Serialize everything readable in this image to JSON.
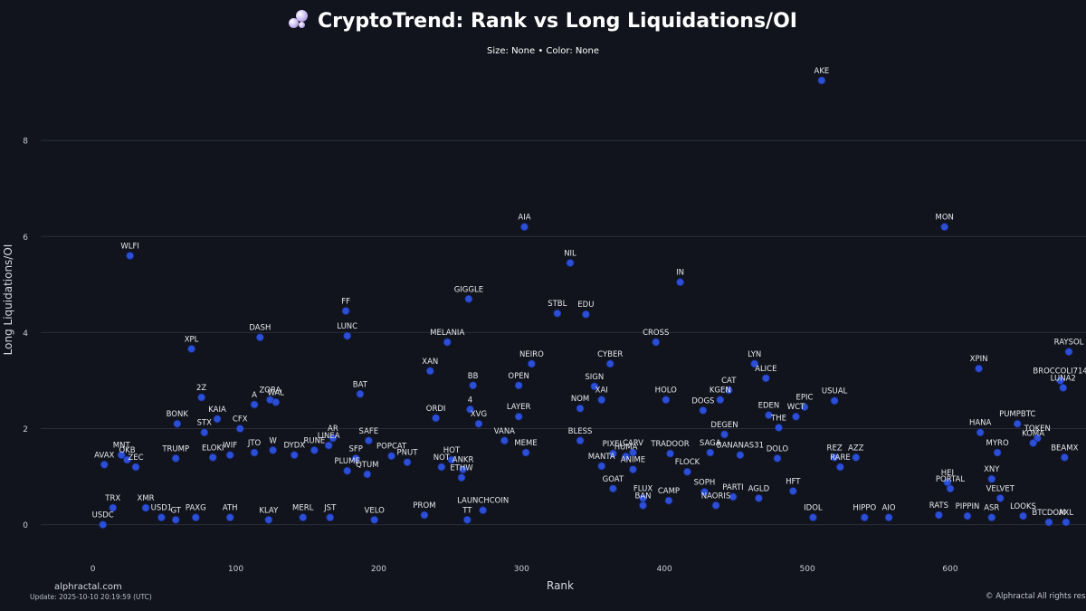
{
  "header": {
    "title": "CryptoTrend: Rank vs Long Liquidations/OI",
    "subtitle": "Size: None • Color: None",
    "logo_icon": "crystal-ball-icon"
  },
  "footer": {
    "brand": "alphractal.com",
    "update": "Update: 2025-10-10 20:19:59 (UTC)",
    "copyright": "© Alphractal All rights reserved"
  },
  "colors": {
    "background": "#11141c",
    "grid": "#2a2e3a",
    "point": "#2b4fd6",
    "label": "#e8e8ee"
  },
  "chart_data": {
    "type": "scatter",
    "title": "CryptoTrend: Rank vs Long Liquidations/OI",
    "subtitle": "Size: None • Color: None",
    "xlabel": "Rank",
    "ylabel": "Long Liquidations/OI",
    "xlim": [
      -27,
      695
    ],
    "ylim": [
      -0.95,
      9.7
    ],
    "xticks": [
      0,
      100,
      200,
      300,
      400,
      500,
      600,
      700
    ],
    "yticks": [
      0,
      2,
      4,
      6,
      8
    ],
    "grid": "horizontal",
    "legend": "none",
    "points": [
      {
        "label": "AKE",
        "x": 510,
        "y": 9.25
      },
      {
        "label": "MON",
        "x": 596,
        "y": 6.2
      },
      {
        "label": "AIA",
        "x": 302,
        "y": 6.2
      },
      {
        "label": "WLFI",
        "x": 26,
        "y": 5.6
      },
      {
        "label": "NIL",
        "x": 334,
        "y": 5.45
      },
      {
        "label": "IN",
        "x": 411,
        "y": 5.05
      },
      {
        "label": "GIGGLE",
        "x": 263,
        "y": 4.7
      },
      {
        "label": "FF",
        "x": 177,
        "y": 4.45
      },
      {
        "label": "STBL",
        "x": 325,
        "y": 4.4
      },
      {
        "label": "EDU",
        "x": 345,
        "y": 4.38
      },
      {
        "label": "DASH",
        "x": 117,
        "y": 3.9
      },
      {
        "label": "LUNC",
        "x": 178,
        "y": 3.93
      },
      {
        "label": "MELANIA",
        "x": 248,
        "y": 3.8
      },
      {
        "label": "CROSS",
        "x": 394,
        "y": 3.8
      },
      {
        "label": "XPL",
        "x": 69,
        "y": 3.66
      },
      {
        "label": "RAYSOL",
        "x": 683,
        "y": 3.6
      },
      {
        "label": "LYN",
        "x": 463,
        "y": 3.35
      },
      {
        "label": "NEIRO",
        "x": 307,
        "y": 3.35
      },
      {
        "label": "CYBER",
        "x": 362,
        "y": 3.35
      },
      {
        "label": "XPIN",
        "x": 620,
        "y": 3.25
      },
      {
        "label": "XAN",
        "x": 236,
        "y": 3.2
      },
      {
        "label": "ALICE",
        "x": 471,
        "y": 3.05
      },
      {
        "label": "BROCCOLI714",
        "x": 677,
        "y": 3.0
      },
      {
        "label": "SIGN",
        "x": 351,
        "y": 2.88
      },
      {
        "label": "OPEN",
        "x": 298,
        "y": 2.9
      },
      {
        "label": "BB",
        "x": 266,
        "y": 2.9
      },
      {
        "label": "CAT",
        "x": 445,
        "y": 2.8
      },
      {
        "label": "LUNA2",
        "x": 679,
        "y": 2.85
      },
      {
        "label": "BAT",
        "x": 187,
        "y": 2.72
      },
      {
        "label": "ZORA",
        "x": 124,
        "y": 2.6
      },
      {
        "label": "2Z",
        "x": 76,
        "y": 2.65
      },
      {
        "label": "HOLO",
        "x": 401,
        "y": 2.6
      },
      {
        "label": "KGEN",
        "x": 439,
        "y": 2.6
      },
      {
        "label": "XAI",
        "x": 356,
        "y": 2.6
      },
      {
        "label": "USUAL",
        "x": 519,
        "y": 2.58
      },
      {
        "label": "WAL",
        "x": 128,
        "y": 2.55
      },
      {
        "label": "A",
        "x": 113,
        "y": 2.5
      },
      {
        "label": "EPIC",
        "x": 498,
        "y": 2.45
      },
      {
        "label": "NOM",
        "x": 341,
        "y": 2.42
      },
      {
        "label": "DOGS",
        "x": 427,
        "y": 2.38
      },
      {
        "label": "4",
        "x": 264,
        "y": 2.4
      },
      {
        "label": "LAYER",
        "x": 298,
        "y": 2.25
      },
      {
        "label": "EDEN",
        "x": 473,
        "y": 2.28
      },
      {
        "label": "WCT",
        "x": 492,
        "y": 2.25
      },
      {
        "label": "KAIA",
        "x": 87,
        "y": 2.2
      },
      {
        "label": "ORDI",
        "x": 240,
        "y": 2.22
      },
      {
        "label": "BONK",
        "x": 59,
        "y": 2.1
      },
      {
        "label": "XVG",
        "x": 270,
        "y": 2.1
      },
      {
        "label": "CFX",
        "x": 103,
        "y": 2.0
      },
      {
        "label": "THE",
        "x": 480,
        "y": 2.02
      },
      {
        "label": "PUMPBTC",
        "x": 647,
        "y": 2.1
      },
      {
        "label": "STX",
        "x": 78,
        "y": 1.92
      },
      {
        "label": "HANA",
        "x": 621,
        "y": 1.92
      },
      {
        "label": "DEGEN",
        "x": 442,
        "y": 1.88
      },
      {
        "label": "VANA",
        "x": 288,
        "y": 1.75
      },
      {
        "label": "BLESS",
        "x": 341,
        "y": 1.75
      },
      {
        "label": "AR",
        "x": 168,
        "y": 1.8
      },
      {
        "label": "TOKEN",
        "x": 661,
        "y": 1.8
      },
      {
        "label": "KOMA",
        "x": 658,
        "y": 1.7
      },
      {
        "label": "MYRO",
        "x": 633,
        "y": 1.5
      },
      {
        "label": "SAFE",
        "x": 193,
        "y": 1.75
      },
      {
        "label": "LINEA",
        "x": 165,
        "y": 1.65
      },
      {
        "label": "RUNE",
        "x": 155,
        "y": 1.55
      },
      {
        "label": "JTO",
        "x": 113,
        "y": 1.5
      },
      {
        "label": "W",
        "x": 126,
        "y": 1.55
      },
      {
        "label": "WIF",
        "x": 96,
        "y": 1.45
      },
      {
        "label": "DYDX",
        "x": 141,
        "y": 1.45
      },
      {
        "label": "ELOKI",
        "x": 84,
        "y": 1.4
      },
      {
        "label": "TRUMP",
        "x": 58,
        "y": 1.38
      },
      {
        "label": "MNT",
        "x": 20,
        "y": 1.45
      },
      {
        "label": "OKB",
        "x": 24,
        "y": 1.35
      },
      {
        "label": "AVAX",
        "x": 8,
        "y": 1.25
      },
      {
        "label": "ZEC",
        "x": 30,
        "y": 1.2
      },
      {
        "label": "MEME",
        "x": 303,
        "y": 1.5
      },
      {
        "label": "PIXEL",
        "x": 364,
        "y": 1.48
      },
      {
        "label": "CARV",
        "x": 378,
        "y": 1.5
      },
      {
        "label": "TRADOOR",
        "x": 404,
        "y": 1.48
      },
      {
        "label": "HUMA",
        "x": 373,
        "y": 1.42
      },
      {
        "label": "SAGA",
        "x": 432,
        "y": 1.5
      },
      {
        "label": "BANANAS31",
        "x": 453,
        "y": 1.45
      },
      {
        "label": "DOLO",
        "x": 479,
        "y": 1.38
      },
      {
        "label": "REZ",
        "x": 519,
        "y": 1.4
      },
      {
        "label": "AZZ",
        "x": 534,
        "y": 1.4
      },
      {
        "label": "RARE",
        "x": 523,
        "y": 1.2
      },
      {
        "label": "BEAMX",
        "x": 680,
        "y": 1.4
      },
      {
        "label": "PORTAL",
        "x": 600,
        "y": 0.75
      },
      {
        "label": "HFT",
        "x": 490,
        "y": 0.7
      },
      {
        "label": "IDOL",
        "x": 504,
        "y": 0.15
      },
      {
        "label": "HIPPO",
        "x": 540,
        "y": 0.15
      },
      {
        "label": "AIO",
        "x": 557,
        "y": 0.15
      },
      {
        "label": "RATS",
        "x": 592,
        "y": 0.2
      },
      {
        "label": "PIPPIN",
        "x": 612,
        "y": 0.18
      },
      {
        "label": "ASR",
        "x": 629,
        "y": 0.15
      },
      {
        "label": "LOOKS",
        "x": 651,
        "y": 0.18
      },
      {
        "label": "BTCDOM",
        "x": 669,
        "y": 0.05
      },
      {
        "label": "AXL",
        "x": 681,
        "y": 0.05
      },
      {
        "label": "USDC",
        "x": 7,
        "y": 0.0
      },
      {
        "label": "TRX",
        "x": 14,
        "y": 0.35
      },
      {
        "label": "XMR",
        "x": 37,
        "y": 0.35
      },
      {
        "label": "USD1",
        "x": 48,
        "y": 0.15
      },
      {
        "label": "GT",
        "x": 58,
        "y": 0.1
      },
      {
        "label": "PAXG",
        "x": 72,
        "y": 0.15
      },
      {
        "label": "ATH",
        "x": 96,
        "y": 0.15
      },
      {
        "label": "KLAY",
        "x": 123,
        "y": 0.1
      },
      {
        "label": "MERL",
        "x": 147,
        "y": 0.15
      },
      {
        "label": "JST",
        "x": 166,
        "y": 0.15
      },
      {
        "label": "VELO",
        "x": 197,
        "y": 0.1
      },
      {
        "label": "PROM",
        "x": 232,
        "y": 0.2
      },
      {
        "label": "LAUNCHCOIN",
        "x": 273,
        "y": 0.3
      },
      {
        "label": "TT",
        "x": 262,
        "y": 0.1
      },
      {
        "label": "BAN",
        "x": 385,
        "y": 0.4
      },
      {
        "label": "CAMP",
        "x": 403,
        "y": 0.5
      },
      {
        "label": "NAORIS",
        "x": 436,
        "y": 0.4
      },
      {
        "label": "AGLD",
        "x": 466,
        "y": 0.55
      },
      {
        "label": "PARTI",
        "x": 448,
        "y": 0.58
      },
      {
        "label": "VELVET",
        "x": 635,
        "y": 0.55
      },
      {
        "label": "ANKR",
        "x": 259,
        "y": 1.15
      },
      {
        "label": "HOT",
        "x": 251,
        "y": 1.35
      },
      {
        "label": "NOT",
        "x": 244,
        "y": 1.2
      },
      {
        "label": "ETHW",
        "x": 258,
        "y": 0.98
      },
      {
        "label": "MANTA",
        "x": 356,
        "y": 1.22
      },
      {
        "label": "ANIME",
        "x": 378,
        "y": 1.15
      },
      {
        "label": "FLOCK",
        "x": 416,
        "y": 1.1
      },
      {
        "label": "GOAT",
        "x": 364,
        "y": 0.75
      },
      {
        "label": "FLUX",
        "x": 385,
        "y": 0.55
      },
      {
        "label": "HEI",
        "x": 598,
        "y": 0.88
      },
      {
        "label": "XNY",
        "x": 629,
        "y": 0.95
      },
      {
        "label": "SOPH",
        "x": 428,
        "y": 0.68
      },
      {
        "label": "QTUM",
        "x": 192,
        "y": 1.05
      },
      {
        "label": "PLUME",
        "x": 178,
        "y": 1.12
      },
      {
        "label": "PNUT",
        "x": 220,
        "y": 1.3
      },
      {
        "label": "POPCAT",
        "x": 209,
        "y": 1.43
      },
      {
        "label": "SFP",
        "x": 184,
        "y": 1.38
      }
    ]
  }
}
